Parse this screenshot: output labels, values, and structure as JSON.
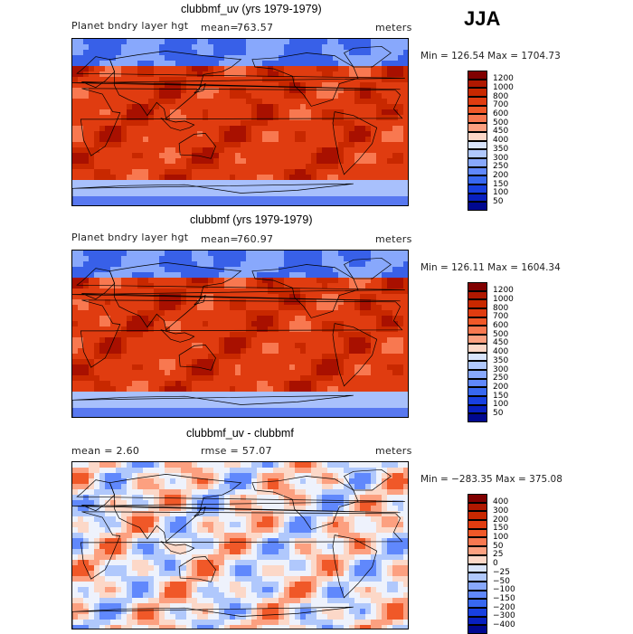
{
  "season": "JJA",
  "panels": [
    {
      "title": "clubbmf_uv (yrs 1979-1979)",
      "left_label": "Planet bndry layer hgt",
      "mean_label": "mean=",
      "mean_value": "763.57",
      "units": "meters",
      "min_label": "Min =",
      "min": 126.54,
      "max_label": "Max =",
      "max": 1704.73,
      "minmax_text": "Min = 126.54  Max = 1704.73",
      "kind": "field"
    },
    {
      "title": "clubbmf (yrs 1979-1979)",
      "left_label": "Planet bndry layer hgt",
      "mean_label": "mean=",
      "mean_value": "760.97",
      "units": "meters",
      "minmax_text": "Min = 126.11  Max = 1604.34",
      "min": 126.11,
      "max": 1604.34,
      "kind": "field"
    },
    {
      "title": "clubbmf_uv - clubbmf",
      "left_label": "mean =    2.60",
      "mean_value": "2.60",
      "center_label": "rmse =   57.07",
      "rmse_value": "57.07",
      "units": "meters",
      "minmax_text": "Min = −283.35  Max = 375.08",
      "min": -283.35,
      "max": 375.08,
      "kind": "diff"
    }
  ],
  "chart_data": [
    {
      "type": "heatmap",
      "title": "clubbmf_uv (yrs 1979-1979)",
      "variable": "Planet bndry layer hgt",
      "units": "meters",
      "mean": 763.57,
      "min": 126.54,
      "max": 1704.73,
      "colorbar_levels": [
        "1200",
        "1000",
        "800",
        "700",
        "600",
        "500",
        "450",
        "400",
        "350",
        "300",
        "250",
        "200",
        "150",
        "100",
        "50"
      ],
      "colorbar_colors": [
        "#800000",
        "#b01800",
        "#c82800",
        "#e03c10",
        "#f05828",
        "#f87850",
        "#fca080",
        "#fcd8c8",
        "#d8e4fc",
        "#b0c8fc",
        "#88a8fc",
        "#6088fc",
        "#3868f0",
        "#1840e0",
        "#0820c0",
        "#000890"
      ]
    },
    {
      "type": "heatmap",
      "title": "clubbmf (yrs 1979-1979)",
      "variable": "Planet bndry layer hgt",
      "units": "meters",
      "mean": 760.97,
      "min": 126.11,
      "max": 1604.34,
      "colorbar_levels": [
        "1200",
        "1000",
        "800",
        "700",
        "600",
        "500",
        "450",
        "400",
        "350",
        "300",
        "250",
        "200",
        "150",
        "100",
        "50"
      ],
      "colorbar_colors": [
        "#800000",
        "#b01800",
        "#c82800",
        "#e03c10",
        "#f05828",
        "#f87850",
        "#fca080",
        "#fcd8c8",
        "#d8e4fc",
        "#b0c8fc",
        "#88a8fc",
        "#6088fc",
        "#3868f0",
        "#1840e0",
        "#0820c0",
        "#000890"
      ]
    },
    {
      "type": "heatmap",
      "title": "clubbmf_uv - clubbmf",
      "units": "meters",
      "mean": 2.6,
      "rmse": 57.07,
      "min": -283.35,
      "max": 375.08,
      "colorbar_levels": [
        "400",
        "300",
        "200",
        "150",
        "100",
        "50",
        "25",
        "0",
        "−25",
        "−50",
        "−100",
        "−150",
        "−200",
        "−300",
        "−400"
      ],
      "colorbar_colors": [
        "#800000",
        "#b01800",
        "#c82800",
        "#e03c10",
        "#f05828",
        "#f87850",
        "#fca080",
        "#fcd8c8",
        "#d8e4fc",
        "#b0c8fc",
        "#88a8fc",
        "#6088fc",
        "#3868f0",
        "#1840e0",
        "#0820c0",
        "#000890"
      ]
    }
  ]
}
